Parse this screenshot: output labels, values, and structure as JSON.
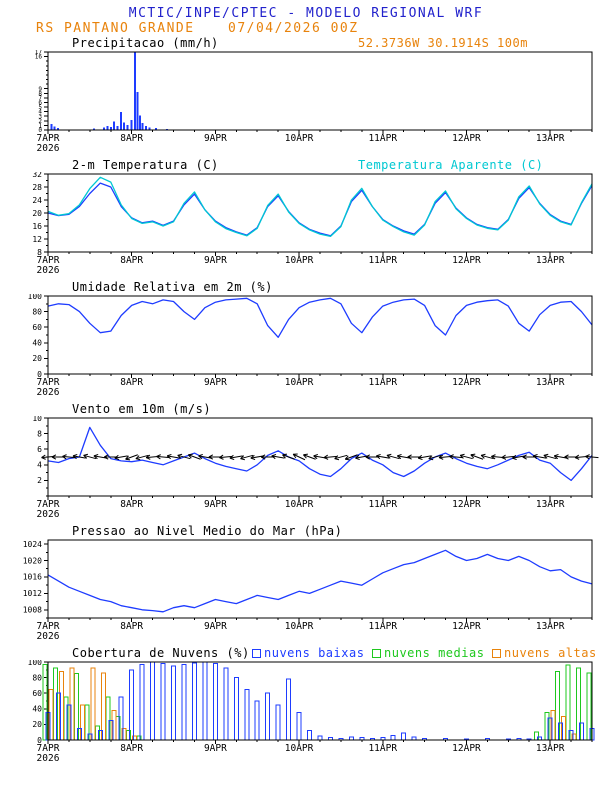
{
  "header": {
    "title": "MCTIC/INPE/CPTEC - MODELO REGIONAL WRF",
    "station": "RS PANTANO GRANDE",
    "run_datetime": "07/04/2026 00Z",
    "location": "52.3736W 30.1914S 100m",
    "title_color": "#2222cc",
    "accent_color": "#e8830c"
  },
  "x_axis": {
    "tick_labels": [
      "7APR",
      "8APR",
      "9APR",
      "10APR",
      "11APR",
      "12APR",
      "13APR"
    ],
    "year_label": "2026",
    "span_days": 6.5,
    "step_days": 0.125
  },
  "chart_data": [
    {
      "name": "precipitation",
      "title": "Precipitacao (mm/h)",
      "type": "bar",
      "ylim": [
        0,
        17
      ],
      "yticks": [
        0,
        1,
        2,
        3,
        4,
        5,
        6,
        7,
        8,
        9,
        16,
        17
      ],
      "yminor": 1,
      "ytick_font": 6,
      "series": [
        {
          "name": "precip",
          "color": "#1e3cff",
          "x": [
            0.04,
            0.08,
            0.12,
            0.55,
            0.67,
            0.71,
            0.75,
            0.79,
            0.83,
            0.87,
            0.91,
            0.95,
            1.0,
            1.04,
            1.07,
            1.1,
            1.13,
            1.17,
            1.21,
            1.29,
            1.42
          ],
          "values": [
            1.3,
            0.8,
            0.4,
            0.3,
            0.5,
            0.9,
            0.6,
            1.8,
            0.9,
            3.9,
            1.6,
            1.1,
            2.2,
            17.0,
            8.3,
            3.2,
            1.5,
            0.9,
            0.5,
            0.4,
            0.2
          ]
        }
      ]
    },
    {
      "name": "temperature",
      "title": "2-m Temperatura (C)",
      "subtitle": "Temperatura Aparente (C)",
      "type": "line",
      "ylim": [
        8,
        32
      ],
      "yticks": [
        8,
        12,
        16,
        20,
        24,
        28,
        32
      ],
      "yminor": 2,
      "series": [
        {
          "name": "2m-temperature",
          "color": "#1e3cff",
          "values": [
            20,
            19.2,
            19.6,
            22,
            26,
            29.2,
            28,
            22,
            18.5,
            17,
            17.5,
            16.2,
            17.5,
            22.5,
            25.8,
            21,
            17.5,
            15.5,
            14.2,
            13.2,
            15.5,
            22,
            25.3,
            20.5,
            17,
            15,
            13.8,
            13,
            16,
            23.5,
            27,
            22,
            18,
            16,
            14.5,
            13.5,
            16.5,
            23,
            26.3,
            21.5,
            18.5,
            16.5,
            15.5,
            15,
            18,
            24.5,
            27.8,
            23,
            19.5,
            17.5,
            16.5,
            23,
            28.5
          ]
        },
        {
          "name": "apparent-temperature",
          "color": "#00c8d2",
          "values": [
            20.5,
            19.3,
            19.8,
            22.5,
            27.5,
            31,
            29.5,
            22.5,
            18.3,
            16.8,
            17.3,
            16,
            17.3,
            23,
            26.5,
            21,
            17.3,
            15.2,
            14,
            13,
            15.3,
            22.3,
            25.8,
            20.3,
            16.8,
            14.8,
            13.5,
            12.8,
            15.8,
            24,
            27.6,
            22,
            17.8,
            15.8,
            14.2,
            13.2,
            16.3,
            23.5,
            26.8,
            21.3,
            18.3,
            16.3,
            15.3,
            14.8,
            17.8,
            25,
            28.3,
            22.8,
            19.3,
            17.3,
            16.3,
            23.2,
            29
          ]
        }
      ]
    },
    {
      "name": "relative-humidity",
      "title": "Umidade Relativa em 2m (%)",
      "type": "line",
      "ylim": [
        0,
        100
      ],
      "yticks": [
        0,
        20,
        40,
        60,
        80,
        100
      ],
      "yminor": 10,
      "series": [
        {
          "name": "rh-2m",
          "color": "#1e3cff",
          "values": [
            87,
            90,
            89,
            80,
            65,
            53,
            55,
            75,
            88,
            93,
            90,
            95,
            93,
            80,
            70,
            85,
            92,
            95,
            96,
            97,
            90,
            62,
            47,
            70,
            85,
            92,
            95,
            97,
            90,
            65,
            53,
            73,
            87,
            92,
            95,
            96,
            88,
            62,
            50,
            75,
            88,
            92,
            94,
            95,
            87,
            65,
            55,
            76,
            88,
            92,
            93,
            80,
            63
          ]
        }
      ]
    },
    {
      "name": "wind",
      "title": "Vento em 10m (m/s)",
      "type": "line",
      "ylim": [
        0,
        10
      ],
      "yticks": [
        2,
        4,
        6,
        8,
        10
      ],
      "yminor": 1,
      "series": [
        {
          "name": "wind-speed",
          "color": "#1e3cff",
          "values": [
            4.5,
            4.3,
            4.8,
            5,
            8.8,
            6.5,
            4.8,
            4.5,
            4.4,
            4.6,
            4.3,
            4,
            4.5,
            5,
            5.5,
            4.8,
            4.2,
            3.8,
            3.5,
            3.2,
            4,
            5.2,
            5.8,
            5,
            4.5,
            3.5,
            2.8,
            2.5,
            3.5,
            4.8,
            5.5,
            4.6,
            4,
            3,
            2.5,
            3.2,
            4.2,
            5,
            5.5,
            4.8,
            4.2,
            3.8,
            3.5,
            4,
            4.6,
            5.2,
            5.6,
            4.6,
            4.2,
            3,
            2,
            3.5,
            5.2
          ]
        }
      ],
      "barbs": {
        "y": 5,
        "color": "#000000",
        "angles_deg": [
          185,
          180,
          175,
          170,
          165,
          170,
          180,
          190,
          200,
          195,
          185,
          175,
          170,
          165,
          160,
          170,
          180,
          185,
          190,
          195,
          190,
          180,
          170,
          160,
          155,
          160,
          170,
          185,
          195,
          200,
          190,
          180,
          170,
          165,
          170,
          180,
          190,
          195,
          185,
          175,
          165,
          160,
          165,
          175,
          185,
          190,
          180,
          170,
          165,
          170,
          180,
          185,
          175
        ]
      }
    },
    {
      "name": "pressure",
      "title": "Pressao ao Nivel Medio do Mar (hPa)",
      "type": "line",
      "ylim": [
        1006,
        1025
      ],
      "yticks": [
        1008,
        1012,
        1016,
        1020,
        1024
      ],
      "yminor": 2,
      "series": [
        {
          "name": "mslp",
          "color": "#1e3cff",
          "values": [
            1016.5,
            1015,
            1013.5,
            1012.5,
            1011.5,
            1010.5,
            1010,
            1009,
            1008.5,
            1008,
            1007.8,
            1007.5,
            1008.5,
            1009,
            1008.5,
            1009.5,
            1010.5,
            1010,
            1009.5,
            1010.5,
            1011.5,
            1011,
            1010.5,
            1011.5,
            1012.5,
            1012,
            1013,
            1014,
            1015,
            1014.5,
            1014,
            1015.5,
            1017,
            1018,
            1019,
            1019.5,
            1020.5,
            1021.5,
            1022.5,
            1021,
            1020,
            1020.5,
            1021.5,
            1020.5,
            1020,
            1021,
            1020,
            1018.5,
            1017.5,
            1017.8,
            1016,
            1015,
            1014.3
          ]
        }
      ]
    },
    {
      "name": "cloud-cover",
      "title": "Cobertura de Nuvens (%)",
      "type": "cloudbar",
      "ylim": [
        0,
        100
      ],
      "yticks": [
        0,
        20,
        40,
        60,
        80,
        100
      ],
      "yminor": 10,
      "legend": [
        {
          "label": "nuvens baixas",
          "color": "#1e3cff"
        },
        {
          "label": "nuvens medias",
          "color": "#1ec81e"
        },
        {
          "label": "nuvens altas",
          "color": "#e8830c"
        }
      ],
      "series": [
        {
          "name": "low-clouds",
          "color": "#1e3cff",
          "values": [
            35,
            60,
            45,
            15,
            8,
            12,
            25,
            55,
            90,
            97,
            100,
            98,
            95,
            97,
            99,
            100,
            98,
            92,
            80,
            65,
            50,
            60,
            45,
            78,
            35,
            12,
            5,
            3,
            2,
            4,
            3,
            2,
            3,
            6,
            9,
            4,
            2,
            0,
            2,
            0,
            1,
            0,
            2,
            0,
            1,
            2,
            1,
            4,
            28,
            22,
            12,
            22,
            15
          ]
        },
        {
          "name": "mid-clouds",
          "color": "#1ec81e",
          "values": [
            97,
            92,
            55,
            85,
            45,
            18,
            55,
            30,
            12,
            5,
            0,
            0,
            0,
            0,
            0,
            0,
            0,
            0,
            0,
            0,
            0,
            0,
            0,
            0,
            0,
            0,
            0,
            0,
            0,
            0,
            0,
            0,
            0,
            0,
            0,
            0,
            0,
            0,
            0,
            0,
            0,
            0,
            0,
            0,
            0,
            0,
            0,
            10,
            35,
            88,
            96,
            92,
            86
          ]
        },
        {
          "name": "high-clouds",
          "color": "#e8830c",
          "values": [
            65,
            88,
            92,
            45,
            92,
            86,
            38,
            15,
            5,
            0,
            0,
            0,
            0,
            0,
            0,
            0,
            0,
            0,
            0,
            0,
            0,
            0,
            0,
            0,
            0,
            0,
            0,
            0,
            0,
            0,
            0,
            0,
            0,
            0,
            0,
            0,
            0,
            0,
            0,
            0,
            0,
            0,
            0,
            0,
            0,
            0,
            0,
            0,
            38,
            30,
            8,
            0,
            0
          ]
        }
      ]
    }
  ]
}
